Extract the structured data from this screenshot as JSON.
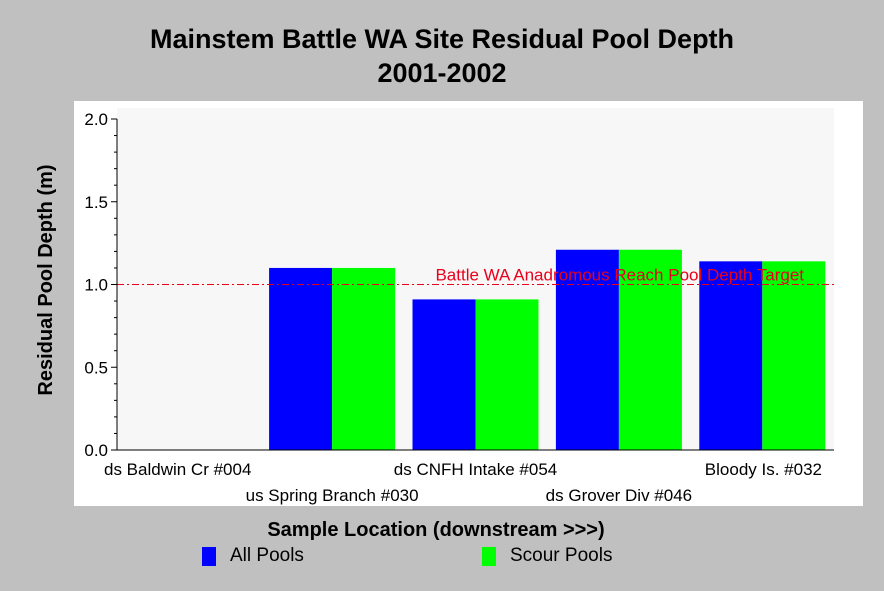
{
  "chart_data": {
    "type": "bar",
    "title": "Mainstem Battle WA Site Residual Pool Depth",
    "subtitle": "2001-2002",
    "xlabel": "Sample Location (downstream >>>)",
    "ylabel": "Residual Pool Depth (m)",
    "categories": [
      "ds Baldwin Cr #004",
      "us Spring Branch #030",
      "ds CNFH Intake #054",
      "ds Grover Div #046",
      "Bloody Is. #032"
    ],
    "series": [
      {
        "name": "All Pools",
        "color": "#0000ff",
        "values": [
          null,
          1.1,
          0.91,
          1.21,
          1.14
        ]
      },
      {
        "name": "Scour Pools",
        "color": "#00ff00",
        "values": [
          null,
          1.1,
          0.91,
          1.21,
          1.14
        ]
      }
    ],
    "ylim": [
      0,
      2
    ],
    "yticks": [
      "0.0",
      "0.5",
      "1.0",
      "1.5",
      "2.0"
    ],
    "ytick_values": [
      0,
      0.5,
      1,
      1.5,
      2
    ],
    "reference_line": {
      "value": 1.0,
      "label": "Battle WA Anadromous Reach Pool Depth Target",
      "color": "#e8001c"
    },
    "legend_position": "bottom",
    "grid": false
  }
}
